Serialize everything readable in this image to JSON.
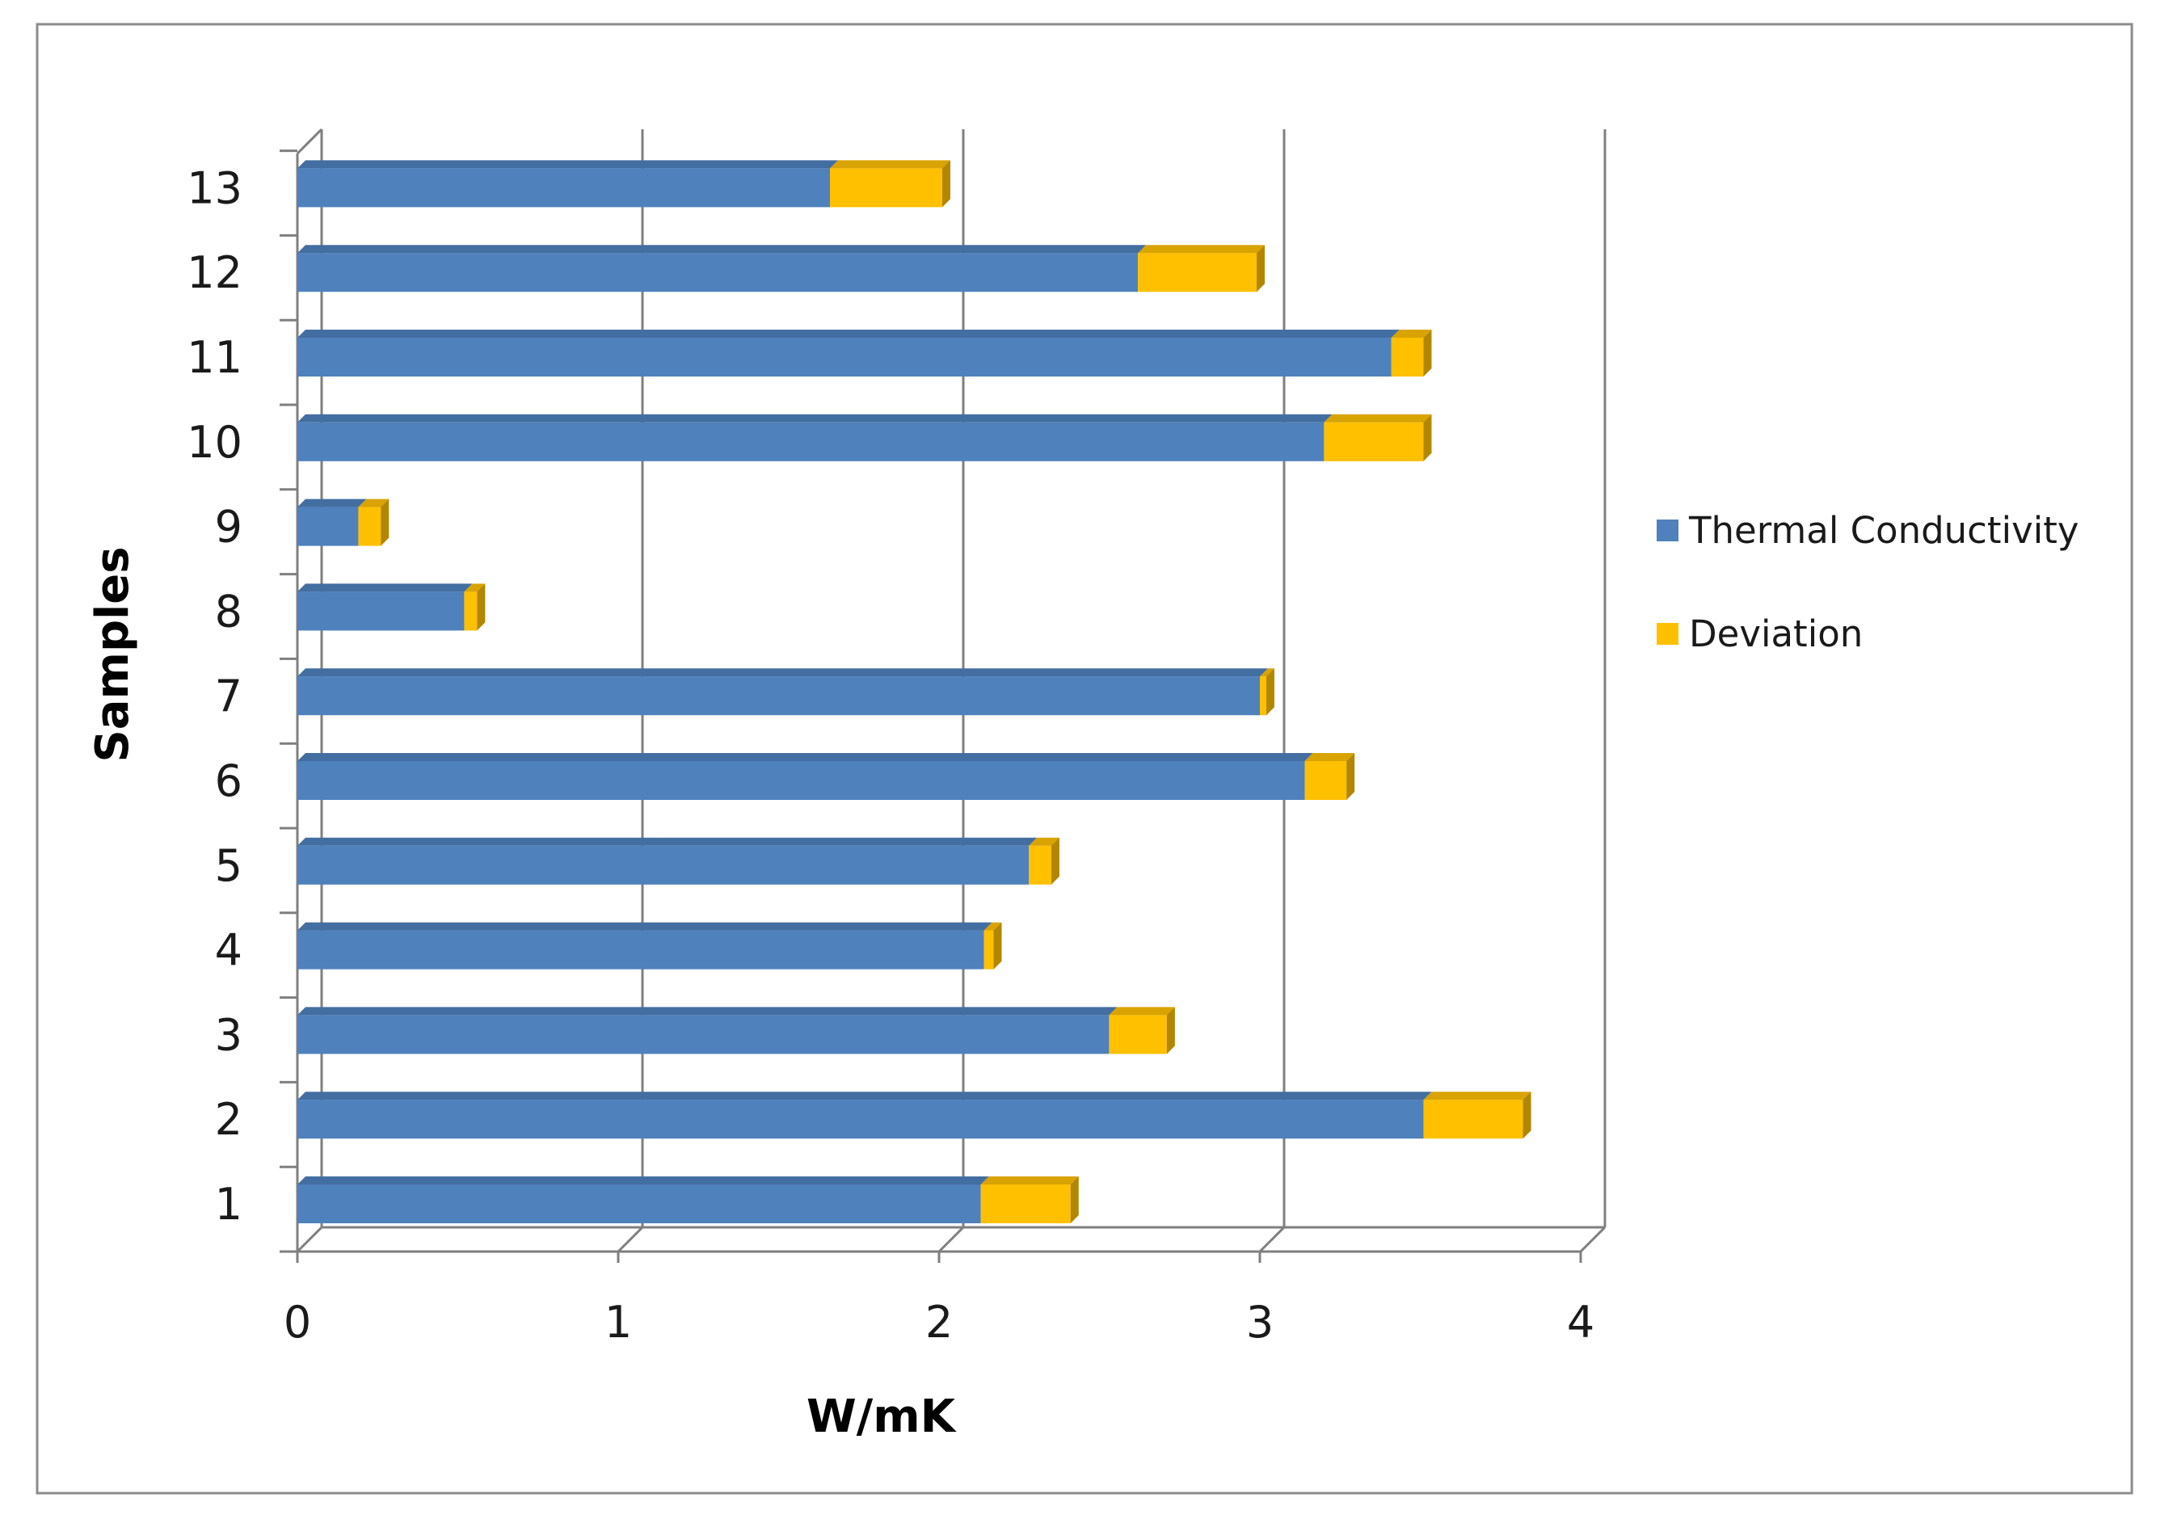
{
  "chart_data": {
    "type": "bar",
    "orientation": "horizontal",
    "stacked": true,
    "style": "3d",
    "categories": [
      "1",
      "2",
      "3",
      "4",
      "5",
      "6",
      "7",
      "8",
      "9",
      "10",
      "11",
      "12",
      "13"
    ],
    "series": [
      {
        "name": "Thermal Conductivity",
        "color": "#4f81bd",
        "values": [
          2.13,
          3.51,
          2.53,
          2.14,
          2.28,
          3.14,
          3.0,
          0.52,
          0.19,
          3.2,
          3.41,
          2.62,
          1.66
        ]
      },
      {
        "name": "Deviation",
        "color": "#ffc000",
        "values": [
          0.28,
          0.31,
          0.18,
          0.03,
          0.07,
          0.13,
          0.02,
          0.04,
          0.07,
          0.31,
          0.1,
          0.37,
          0.35
        ]
      }
    ],
    "xlabel": "W/mK",
    "ylabel": "Samples",
    "x_ticks": [
      "0",
      "1",
      "2",
      "3",
      "4"
    ],
    "xlim": [
      0,
      4
    ],
    "grid": true,
    "legend_position": "right"
  }
}
